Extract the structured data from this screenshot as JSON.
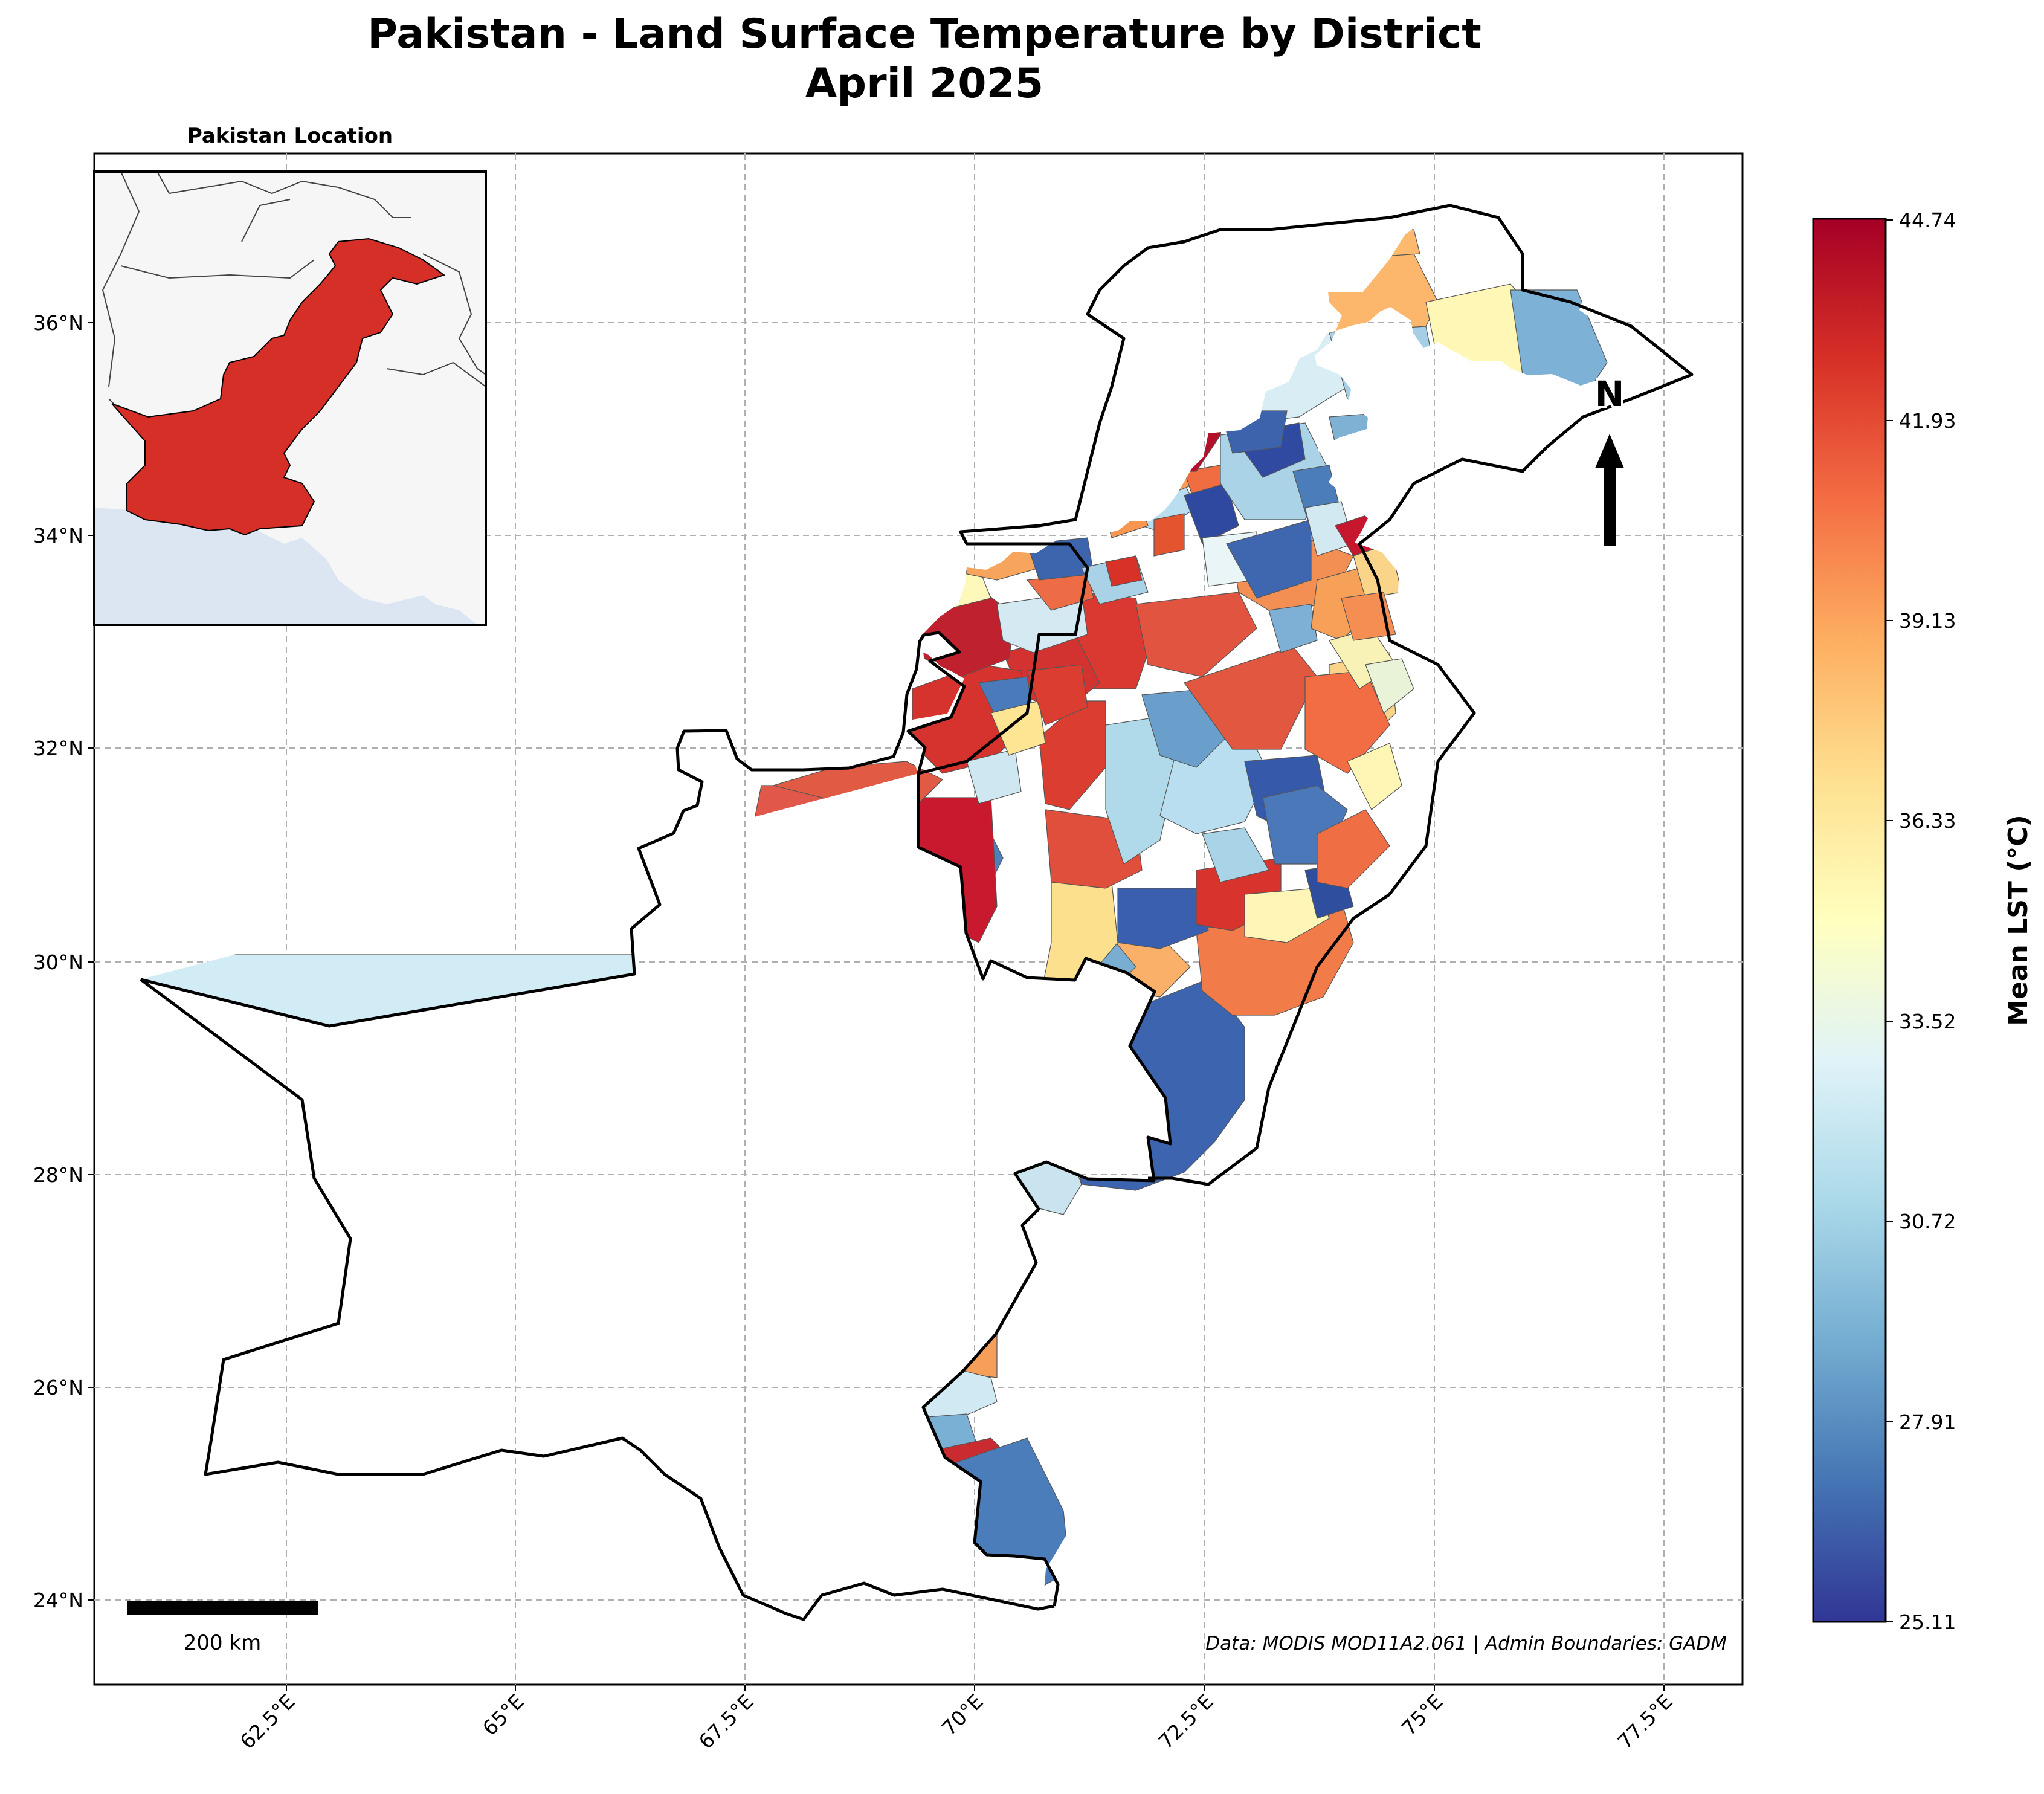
{
  "title": {
    "line1": "Pakistan - Land Surface Temperature by District",
    "line2": "April 2025"
  },
  "inset": {
    "title": "Pakistan Location"
  },
  "north_arrow": {
    "label": "N"
  },
  "scale_bar": {
    "label": "200 km"
  },
  "attribution": "Data: MODIS MOD11A2.061 | Admin Boundaries: GADM",
  "colorbar": {
    "label": "Mean LST (°C)",
    "ticks": [
      "44.74",
      "41.93",
      "39.13",
      "36.33",
      "33.52",
      "30.72",
      "27.91",
      "25.11"
    ],
    "min": 25.11,
    "max": 44.74,
    "colormap": "RdYlBu_r"
  },
  "colors": {
    "pakistan_inset": "#d62f27",
    "sea": "#dbe6f2",
    "land": "#f6f6f6"
  },
  "chart_data": {
    "type": "choropleth",
    "x_axis": {
      "range": [
        60.3,
        77.8
      ],
      "ticks": [
        "62.5°E",
        "65°E",
        "67.5°E",
        "70°E",
        "72.5°E",
        "75°E",
        "77.5°E"
      ]
    },
    "y_axis": {
      "range": [
        23.2,
        37.6
      ],
      "ticks": [
        "24°N",
        "26°N",
        "28°N",
        "30°N",
        "32°N",
        "34°N",
        "36°N"
      ]
    },
    "grid": true
  }
}
